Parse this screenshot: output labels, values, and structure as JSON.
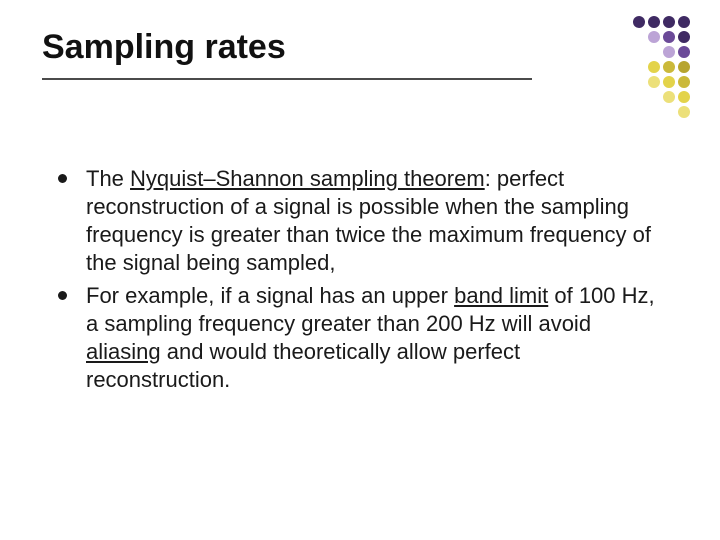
{
  "title": "Sampling rates",
  "bullets": [
    {
      "segments": [
        {
          "text": "The "
        },
        {
          "text": "Nyquist–Shannon sampling theorem",
          "underline": true
        },
        {
          "text": ": perfect reconstruction of a signal is possible when the sampling frequency is greater than twice the maximum frequency of the signal being sampled,"
        }
      ]
    },
    {
      "segments": [
        {
          "text": "For example, if a signal has an upper "
        },
        {
          "text": "band limit",
          "underline": true
        },
        {
          "text": " of 100 Hz, a sampling frequency greater than 200 Hz will avoid "
        },
        {
          "text": "aliasing",
          "underline": true
        },
        {
          "text": " and would theoretically allow perfect reconstruction."
        }
      ]
    }
  ],
  "style": {
    "background_color": "#ffffff",
    "text_color": "#1a1a1a",
    "title_fontsize": 34,
    "body_fontsize": 22,
    "underline_color": "#4b4b4b"
  },
  "dot_grid": {
    "rows": 7,
    "cols": 7,
    "colors": [
      [
        "",
        "",
        "",
        "#3f2a63",
        "#3f2a63",
        "#3f2a63",
        "#3f2a63"
      ],
      [
        "",
        "",
        "",
        "",
        "#bca4d6",
        "#6b4a98",
        "#3f2a63"
      ],
      [
        "",
        "",
        "",
        "",
        "",
        "#bca4d6",
        "#6b4a98"
      ],
      [
        "",
        "",
        "",
        "",
        "#e3d34a",
        "#cbb93a",
        "#b7a52f"
      ],
      [
        "",
        "",
        "",
        "",
        "#ece07a",
        "#e3d34a",
        "#cbb93a"
      ],
      [
        "",
        "",
        "",
        "",
        "",
        "#ece07a",
        "#e3d34a"
      ],
      [
        "",
        "",
        "",
        "",
        "",
        "",
        "#ece07a"
      ]
    ]
  }
}
